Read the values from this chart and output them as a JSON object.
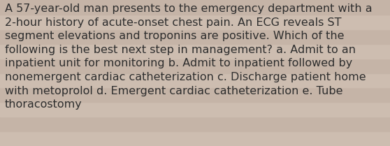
{
  "lines": [
    "A 57-year-old man presents to the emergency department with a",
    "2-hour history of acute-onset chest pain. An ECG reveals ST",
    "segment elevations and troponins are positive. Which of the",
    "following is the best next step in management? a. Admit to an",
    "inpatient unit for monitoring b. Admit to inpatient followed by",
    "nonemergent cardiac catheterization c. Discharge patient home",
    "with metoprolol d. Emergent cardiac catheterization e. Tube",
    "thoracostomy"
  ],
  "stripe_colors": [
    "#cdbdb0",
    "#c5b4a7",
    "#cdbdb0",
    "#c5b4a7",
    "#cdbdb0",
    "#c5b4a7",
    "#cdbdb0",
    "#c5b4a7",
    "#cdbdb0",
    "#c5b4a7"
  ],
  "text_color": "#2e2e2e",
  "font_size": 11.5,
  "fig_width": 5.58,
  "fig_height": 2.09,
  "dpi": 100,
  "n_stripes": 10
}
